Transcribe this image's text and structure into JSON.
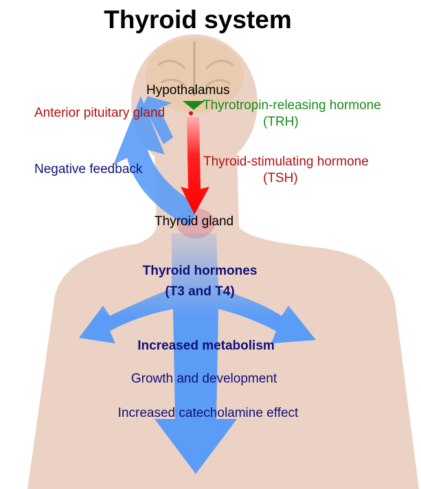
{
  "title": "Thyroid system",
  "labels": {
    "hypothalamus": "Hypothalamus",
    "anterior_pituitary": "Anterior pituitary gland",
    "trh_line1": "Thyrotropin-releasing hormone",
    "trh_line2": "(TRH)",
    "negative_feedback": "Negative feedback",
    "tsh_line1": "Thyroid-stimulating hormone",
    "tsh_line2": "(TSH)",
    "thyroid_gland": "Thyroid gland",
    "hormones_line1": "Thyroid hormones",
    "hormones_line2": "(T3 and T4)",
    "effect1": "Increased metabolism",
    "effect2": "Growth and development",
    "effect3": "Increased catecholamine effect"
  },
  "colors": {
    "skin": "#ecd2c4",
    "blue_arrow": "#5a9cf6",
    "red_arrow": "#ff1a1a",
    "green": "#1a8a1a",
    "dark_red": "#b01010",
    "navy": "#10107a"
  }
}
